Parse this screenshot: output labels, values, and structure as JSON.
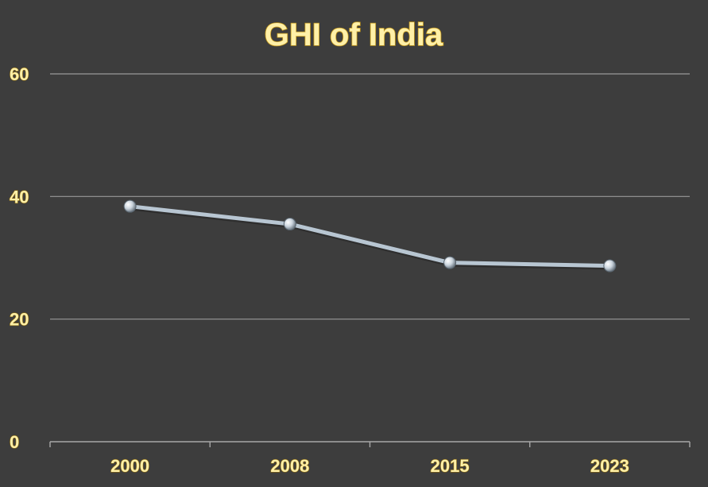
{
  "chart_data": {
    "type": "line",
    "title": "GHI of India",
    "xlabel": "",
    "ylabel": "",
    "categories": [
      "2000",
      "2008",
      "2015",
      "2023"
    ],
    "series": [
      {
        "values": [
          38.4,
          35.5,
          29.2,
          28.7
        ]
      }
    ],
    "ylim": [
      0,
      60
    ],
    "yticks": [
      "0",
      "20",
      "40",
      "60"
    ],
    "grid": true,
    "legend": "none",
    "colors": {
      "background": "#3d3d3d",
      "line": "#b8c6d2",
      "label": "#fff0a8",
      "gridline": "#9a9a9a"
    }
  }
}
